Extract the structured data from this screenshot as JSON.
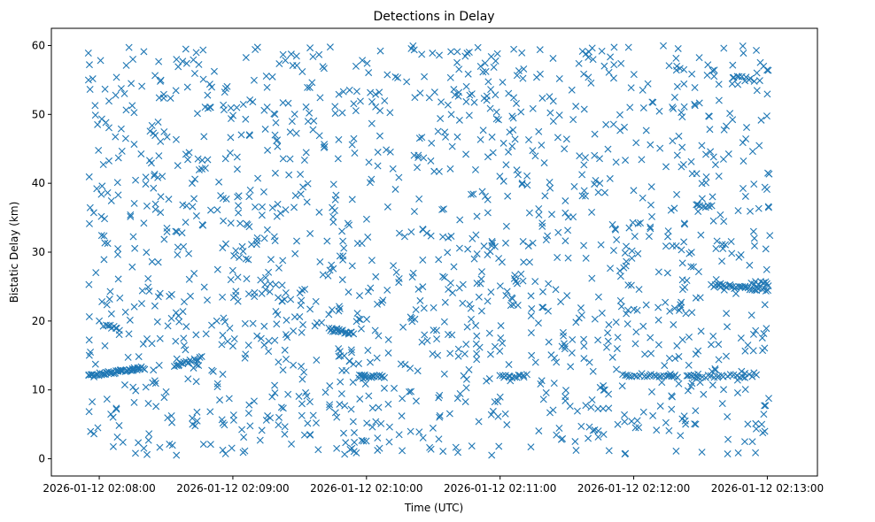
{
  "chart_data": {
    "type": "scatter",
    "title": "Detections in Delay",
    "xlabel": "Time (UTC)",
    "ylabel": "Bistatic Delay (km)",
    "marker": "x",
    "color": "#1f77b4",
    "x_unit": "seconds after 2026-01-12 02:08:00",
    "xlim": [
      -21.5,
      322.5
    ],
    "ylim": [
      -2.5,
      62.5
    ],
    "x_ticks": [
      {
        "value": 0,
        "label": "2026-01-12 02:08:00"
      },
      {
        "value": 60,
        "label": "2026-01-12 02:09:00"
      },
      {
        "value": 120,
        "label": "2026-01-12 02:10:00"
      },
      {
        "value": 180,
        "label": "2026-01-12 02:11:00"
      },
      {
        "value": 240,
        "label": "2026-01-12 02:12:00"
      },
      {
        "value": 300,
        "label": "2026-01-12 02:13:00"
      }
    ],
    "y_ticks": [
      {
        "value": 0,
        "label": "0"
      },
      {
        "value": 10,
        "label": "10"
      },
      {
        "value": 20,
        "label": "20"
      },
      {
        "value": 30,
        "label": "30"
      },
      {
        "value": 40,
        "label": "40"
      },
      {
        "value": 50,
        "label": "50"
      },
      {
        "value": 60,
        "label": "60"
      }
    ],
    "grid": false,
    "noise": {
      "count": 1500,
      "x_range": [
        -5.5,
        301.5
      ],
      "y_range": [
        0.5,
        60
      ],
      "seed": 20260112
    },
    "tracks": [
      {
        "x_start": -5,
        "x_end": 20,
        "y_start": 12.0,
        "y_end": 13.2,
        "count": 45
      },
      {
        "x_start": 34,
        "x_end": 46,
        "y_start": 13.6,
        "y_end": 14.6,
        "count": 18
      },
      {
        "x_start": 103,
        "x_end": 114,
        "y_start": 18.8,
        "y_end": 18.2,
        "count": 20
      },
      {
        "x_start": 117,
        "x_end": 128,
        "y_start": 12.0,
        "y_end": 12.0,
        "count": 16
      },
      {
        "x_start": 180,
        "x_end": 192,
        "y_start": 12.0,
        "y_end": 12.0,
        "count": 14
      },
      {
        "x_start": 235,
        "x_end": 260,
        "y_start": 12.2,
        "y_end": 12.0,
        "count": 24
      },
      {
        "x_start": 264,
        "x_end": 293,
        "y_start": 12.0,
        "y_end": 12.0,
        "count": 22
      },
      {
        "x_start": 275,
        "x_end": 300,
        "y_start": 25.2,
        "y_end": 24.5,
        "count": 30
      },
      {
        "x_start": 2,
        "x_end": 8,
        "y_start": 19.5,
        "y_end": 19.0,
        "count": 8
      },
      {
        "x_start": 293,
        "x_end": 300,
        "y_start": 25.5,
        "y_end": 25.5,
        "count": 8
      },
      {
        "x_start": 285,
        "x_end": 294,
        "y_start": 55.5,
        "y_end": 55.0,
        "count": 8
      },
      {
        "x_start": 268,
        "x_end": 275,
        "y_start": 37.0,
        "y_end": 36.5,
        "count": 8
      }
    ]
  }
}
